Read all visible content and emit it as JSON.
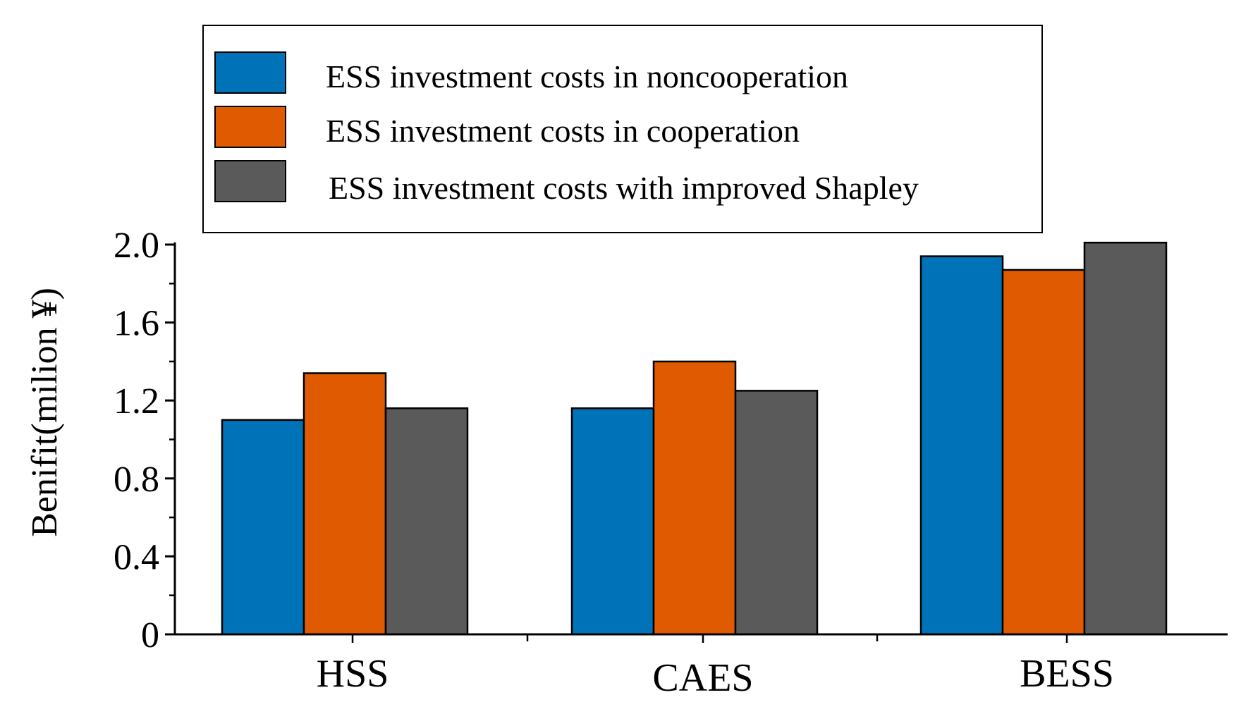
{
  "chart_data": {
    "type": "bar",
    "title": "",
    "xlabel": "",
    "ylabel": "Benifit(milion ¥)",
    "categories": [
      "HSS",
      "CAES",
      "BESS"
    ],
    "series": [
      {
        "name": "ESS investment costs in noncooperation",
        "color": "#0072B8",
        "values": [
          1.1,
          1.16,
          1.94
        ]
      },
      {
        "name": "ESS investment costs in cooperation",
        "color": "#DF5A00",
        "values": [
          1.34,
          1.4,
          1.87
        ]
      },
      {
        "name": "ESS investment costs with improved Shapley",
        "color": "#5A5A5A",
        "values": [
          1.16,
          1.25,
          2.01
        ]
      }
    ],
    "ylim": [
      0,
      2.0
    ],
    "yticks": [
      "0",
      "0.4",
      "0.8",
      "1.2",
      "1.6",
      "2.0"
    ],
    "legend_position": "top",
    "grid": false
  }
}
